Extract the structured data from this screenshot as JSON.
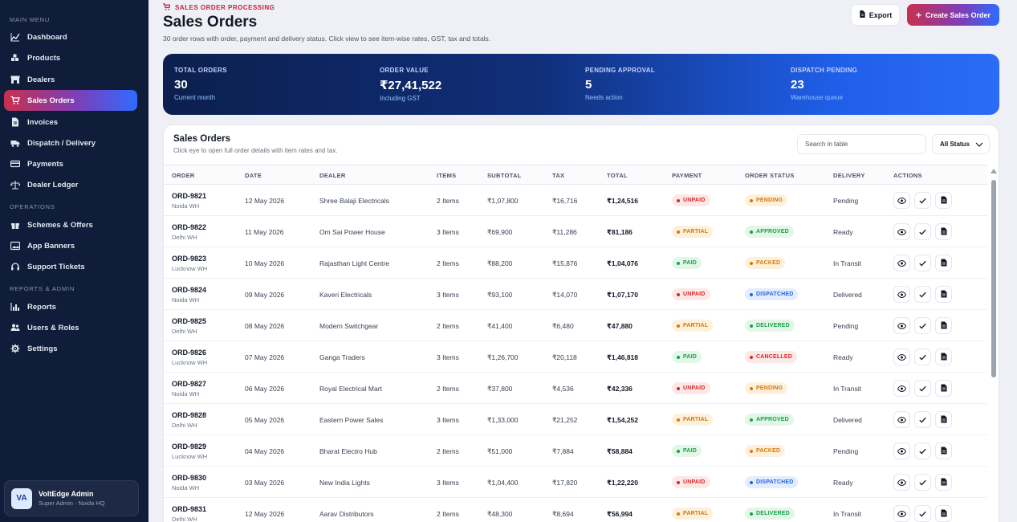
{
  "sidebar": {
    "sections": {
      "main": "MAIN MENU",
      "operations": "OPERATIONS",
      "reports": "REPORTS & ADMIN"
    },
    "items": [
      {
        "label": "Dashboard",
        "icon": "chart-line-icon"
      },
      {
        "label": "Products",
        "icon": "boxes-icon"
      },
      {
        "label": "Dealers",
        "icon": "store-icon"
      },
      {
        "label": "Sales Orders",
        "icon": "cart-icon",
        "active": true
      },
      {
        "label": "Invoices",
        "icon": "file-invoice-icon"
      },
      {
        "label": "Dispatch / Delivery",
        "icon": "truck-icon"
      },
      {
        "label": "Payments",
        "icon": "payment-icon"
      },
      {
        "label": "Dealer Ledger",
        "icon": "scale-icon"
      },
      {
        "label": "Schemes & Offers",
        "icon": "gift-icon"
      },
      {
        "label": "App Banners",
        "icon": "image-icon"
      },
      {
        "label": "Support Tickets",
        "icon": "headset-icon"
      },
      {
        "label": "Reports",
        "icon": "report-icon"
      },
      {
        "label": "Users & Roles",
        "icon": "users-icon"
      },
      {
        "label": "Settings",
        "icon": "gear-icon"
      }
    ],
    "user": {
      "initials": "VA",
      "name": "VoltEdge Admin",
      "role": "Super Admin · Noida HQ"
    }
  },
  "header": {
    "eyebrow": "SALES ORDER PROCESSING",
    "title": "Sales Orders",
    "subtitle": "30 order rows with order, payment and delivery status. Click view to see item-wise rates, GST, tax and totals.",
    "export_label": "Export",
    "create_label": "Create Sales Order"
  },
  "kpis": [
    {
      "label": "TOTAL ORDERS",
      "value": "30",
      "sub": "Current month"
    },
    {
      "label": "ORDER VALUE",
      "value": "₹27,41,522",
      "sub": "Including GST"
    },
    {
      "label": "PENDING APPROVAL",
      "value": "5",
      "sub": "Needs action"
    },
    {
      "label": "DISPATCH PENDING",
      "value": "23",
      "sub": "Warehouse queue"
    }
  ],
  "table": {
    "title": "Sales Orders",
    "subtitle": "Click eye to open full order details with item rates and tax.",
    "search_placeholder": "Search in table",
    "status_filter": "All Status",
    "columns": [
      "ORDER",
      "DATE",
      "DEALER",
      "ITEMS",
      "SUBTOTAL",
      "TAX",
      "TOTAL",
      "PAYMENT",
      "ORDER STATUS",
      "DELIVERY",
      "ACTIONS"
    ],
    "rows": [
      {
        "id": "ORD-9821",
        "loc": "Noida WH",
        "date": "12 May 2026",
        "dealer": "Shree Balaji Electricals",
        "items": "2 Items",
        "subtotal": "₹1,07,800",
        "tax": "₹16,716",
        "total": "₹1,24,516",
        "payment": "UNPAID",
        "status": "PENDING",
        "delivery": "Pending"
      },
      {
        "id": "ORD-9822",
        "loc": "Delhi WH",
        "date": "11 May 2026",
        "dealer": "Om Sai Power House",
        "items": "3 Items",
        "subtotal": "₹69,900",
        "tax": "₹11,286",
        "total": "₹81,186",
        "payment": "PARTIAL",
        "status": "APPROVED",
        "delivery": "Ready"
      },
      {
        "id": "ORD-9823",
        "loc": "Lucknow WH",
        "date": "10 May 2026",
        "dealer": "Rajasthan Light Centre",
        "items": "2 Items",
        "subtotal": "₹88,200",
        "tax": "₹15,876",
        "total": "₹1,04,076",
        "payment": "PAID",
        "status": "PACKED",
        "delivery": "In Transit"
      },
      {
        "id": "ORD-9824",
        "loc": "Noida WH",
        "date": "09 May 2026",
        "dealer": "Kaveri Electricals",
        "items": "3 Items",
        "subtotal": "₹93,100",
        "tax": "₹14,070",
        "total": "₹1,07,170",
        "payment": "UNPAID",
        "status": "DISPATCHED",
        "delivery": "Delivered"
      },
      {
        "id": "ORD-9825",
        "loc": "Delhi WH",
        "date": "08 May 2026",
        "dealer": "Modern Switchgear",
        "items": "2 Items",
        "subtotal": "₹41,400",
        "tax": "₹6,480",
        "total": "₹47,880",
        "payment": "PARTIAL",
        "status": "DELIVERED",
        "delivery": "Pending"
      },
      {
        "id": "ORD-9826",
        "loc": "Lucknow WH",
        "date": "07 May 2026",
        "dealer": "Ganga Traders",
        "items": "3 Items",
        "subtotal": "₹1,26,700",
        "tax": "₹20,118",
        "total": "₹1,46,818",
        "payment": "PAID",
        "status": "CANCELLED",
        "delivery": "Ready"
      },
      {
        "id": "ORD-9827",
        "loc": "Noida WH",
        "date": "06 May 2026",
        "dealer": "Royal Electrical Mart",
        "items": "2 Items",
        "subtotal": "₹37,800",
        "tax": "₹4,536",
        "total": "₹42,336",
        "payment": "UNPAID",
        "status": "PENDING",
        "delivery": "In Transit"
      },
      {
        "id": "ORD-9828",
        "loc": "Delhi WH",
        "date": "05 May 2026",
        "dealer": "Eastern Power Sales",
        "items": "3 Items",
        "subtotal": "₹1,33,000",
        "tax": "₹21,252",
        "total": "₹1,54,252",
        "payment": "PARTIAL",
        "status": "APPROVED",
        "delivery": "Delivered"
      },
      {
        "id": "ORD-9829",
        "loc": "Lucknow WH",
        "date": "04 May 2026",
        "dealer": "Bharat Electro Hub",
        "items": "2 Items",
        "subtotal": "₹51,000",
        "tax": "₹7,884",
        "total": "₹58,884",
        "payment": "PAID",
        "status": "PACKED",
        "delivery": "Pending"
      },
      {
        "id": "ORD-9830",
        "loc": "Noida WH",
        "date": "03 May 2026",
        "dealer": "New India Lights",
        "items": "3 Items",
        "subtotal": "₹1,04,400",
        "tax": "₹17,820",
        "total": "₹1,22,220",
        "payment": "UNPAID",
        "status": "DISPATCHED",
        "delivery": "Ready"
      },
      {
        "id": "ORD-9831",
        "loc": "Delhi WH",
        "date": "12 May 2026",
        "dealer": "Aarav Distributors",
        "items": "2 Items",
        "subtotal": "₹48,300",
        "tax": "₹8,694",
        "total": "₹56,994",
        "payment": "PARTIAL",
        "status": "DELIVERED",
        "delivery": "In Transit"
      }
    ]
  },
  "colors": {
    "accent_red": "#c8304f",
    "accent_blue": "#2f6bff",
    "sidebar_bg": "#0f1d3a",
    "unpaid": "#dc2626",
    "partial": "#d97706",
    "paid": "#16a34a",
    "dispatched": "#2563eb"
  }
}
